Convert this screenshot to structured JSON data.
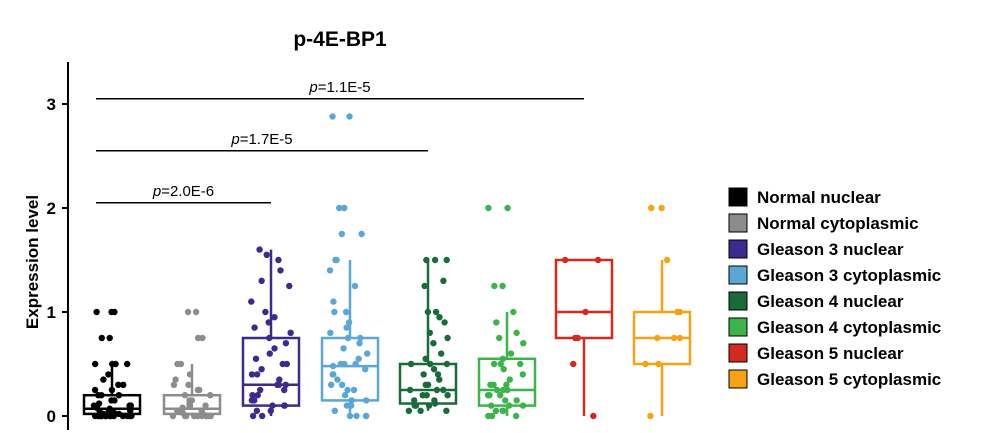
{
  "chart_data": {
    "type": "box",
    "title": "p-4E-BP1",
    "ylabel": "Expression level",
    "xlabel": "",
    "ylim": [
      -0.1,
      3.35
    ],
    "yticks": [
      0,
      1,
      2,
      3
    ],
    "grid": false,
    "legend_position": "right",
    "significance": [
      {
        "from": 0,
        "to": 2,
        "y": 2.05,
        "p_prefix": "p",
        "p_value": "=2.0E-6"
      },
      {
        "from": 0,
        "to": 4,
        "y": 2.55,
        "p_prefix": "p",
        "p_value": "=1.7E-5"
      },
      {
        "from": 0,
        "to": 6,
        "y": 3.05,
        "p_prefix": "p",
        "p_value": "=1.1E-5"
      }
    ],
    "series": [
      {
        "name": "Normal nuclear",
        "color": "#000000",
        "box": {
          "q1": 0.02,
          "median": 0.07,
          "q3": 0.2,
          "whisker_low": 0,
          "whisker_high": 0.5
        },
        "points": [
          1,
          1,
          1,
          0.75,
          0.75,
          0.5,
          0.5,
          0.5,
          0.5,
          0.4,
          0.35,
          0.3,
          0.3,
          0.25,
          0.25,
          0.2,
          0.2,
          0.2,
          0.15,
          0.15,
          0.12,
          0.1,
          0.1,
          0.1,
          0.08,
          0.07,
          0.05,
          0.05,
          0.05,
          0.03,
          0.02,
          0.02,
          0,
          0,
          0,
          0,
          0,
          0,
          0,
          0,
          0,
          0,
          0,
          0,
          0,
          0,
          0,
          0
        ]
      },
      {
        "name": "Normal cytoplasmic",
        "color": "#8c8c8c",
        "box": {
          "q1": 0.02,
          "median": 0.07,
          "q3": 0.2,
          "whisker_low": 0,
          "whisker_high": 0.5
        },
        "points": [
          1,
          1,
          0.75,
          0.75,
          0.5,
          0.5,
          0.4,
          0.35,
          0.3,
          0.3,
          0.25,
          0.25,
          0.2,
          0.2,
          0.15,
          0.15,
          0.12,
          0.1,
          0.1,
          0.1,
          0.08,
          0.05,
          0.05,
          0.05,
          0.03,
          0.02,
          0,
          0,
          0,
          0,
          0,
          0,
          0,
          0,
          0,
          0
        ]
      },
      {
        "name": "Gleason 3 nuclear",
        "color": "#3c2a8c",
        "box": {
          "q1": 0.1,
          "median": 0.3,
          "q3": 0.75,
          "whisker_low": 0,
          "whisker_high": 1.6
        },
        "points": [
          1.6,
          1.55,
          1.5,
          1.4,
          1.3,
          1.25,
          1.1,
          1,
          0.95,
          0.9,
          0.85,
          0.8,
          0.75,
          0.7,
          0.65,
          0.6,
          0.55,
          0.5,
          0.5,
          0.45,
          0.4,
          0.4,
          0.35,
          0.3,
          0.3,
          0.3,
          0.25,
          0.25,
          0.2,
          0.2,
          0.15,
          0.15,
          0.1,
          0.1,
          0.1,
          0.05,
          0.05,
          0,
          0
        ]
      },
      {
        "name": "Gleason 3 cytoplasmic",
        "color": "#5aa7d6",
        "box": {
          "q1": 0.15,
          "median": 0.48,
          "q3": 0.75,
          "whisker_low": 0,
          "whisker_high": 1.5
        },
        "points": [
          2.88,
          2.88,
          2,
          2,
          1.75,
          1.75,
          1.5,
          1.5,
          1.4,
          1.25,
          1.1,
          1,
          1,
          0.9,
          0.85,
          0.8,
          0.75,
          0.75,
          0.7,
          0.65,
          0.6,
          0.55,
          0.5,
          0.5,
          0.5,
          0.48,
          0.45,
          0.4,
          0.4,
          0.35,
          0.3,
          0.3,
          0.25,
          0.25,
          0.2,
          0.15,
          0.15,
          0.1,
          0.1,
          0.05,
          0,
          0,
          0,
          0
        ]
      },
      {
        "name": "Gleason 4 nuclear",
        "color": "#1a6a3a",
        "box": {
          "q1": 0.12,
          "median": 0.25,
          "q3": 0.5,
          "whisker_low": 0.05,
          "whisker_high": 1.5
        },
        "points": [
          1.5,
          1.5,
          1.5,
          1.3,
          1.25,
          1,
          1,
          0.95,
          0.9,
          0.8,
          0.75,
          0.7,
          0.6,
          0.55,
          0.5,
          0.5,
          0.5,
          0.45,
          0.4,
          0.4,
          0.35,
          0.3,
          0.3,
          0.25,
          0.25,
          0.25,
          0.2,
          0.2,
          0.2,
          0.15,
          0.15,
          0.12,
          0.1,
          0.1,
          0.1,
          0.05,
          0.05,
          0.05
        ]
      },
      {
        "name": "Gleason 4 cytoplasmic",
        "color": "#3cb44b",
        "box": {
          "q1": 0.1,
          "median": 0.25,
          "q3": 0.55,
          "whisker_low": 0,
          "whisker_high": 1
        },
        "points": [
          2,
          2,
          1.25,
          1.25,
          1,
          0.9,
          0.8,
          0.75,
          0.7,
          0.6,
          0.55,
          0.5,
          0.5,
          0.5,
          0.45,
          0.4,
          0.35,
          0.3,
          0.3,
          0.3,
          0.25,
          0.25,
          0.25,
          0.2,
          0.2,
          0.2,
          0.15,
          0.15,
          0.1,
          0.1,
          0.1,
          0.05,
          0.05,
          0.05,
          0,
          0,
          0
        ]
      },
      {
        "name": "Gleason 5 nuclear",
        "color": "#d42a1e",
        "box": {
          "q1": 0.75,
          "median": 1,
          "q3": 1.5,
          "whisker_low": 0,
          "whisker_high": 1.5
        },
        "points": [
          1.5,
          1.5,
          1,
          0.75,
          0.75,
          0.5,
          0
        ]
      },
      {
        "name": "Gleason 5 cytoplasmic",
        "color": "#f5a214",
        "box": {
          "q1": 0.5,
          "median": 0.75,
          "q3": 1,
          "whisker_low": 0,
          "whisker_high": 1.5
        },
        "points": [
          2,
          2,
          1.5,
          1,
          1,
          0.75,
          0.75,
          0.75,
          0.5,
          0.5,
          0
        ]
      }
    ],
    "legend_entries": [
      "Normal nuclear",
      "Normal cytoplasmic",
      "Gleason 3 nuclear",
      " Gleason 3 cytoplasmic",
      "Gleason 4 nuclear",
      "Gleason 4 cytoplasmic",
      "Gleason 5 nuclear",
      " Gleason 5 cytoplasmic"
    ]
  }
}
